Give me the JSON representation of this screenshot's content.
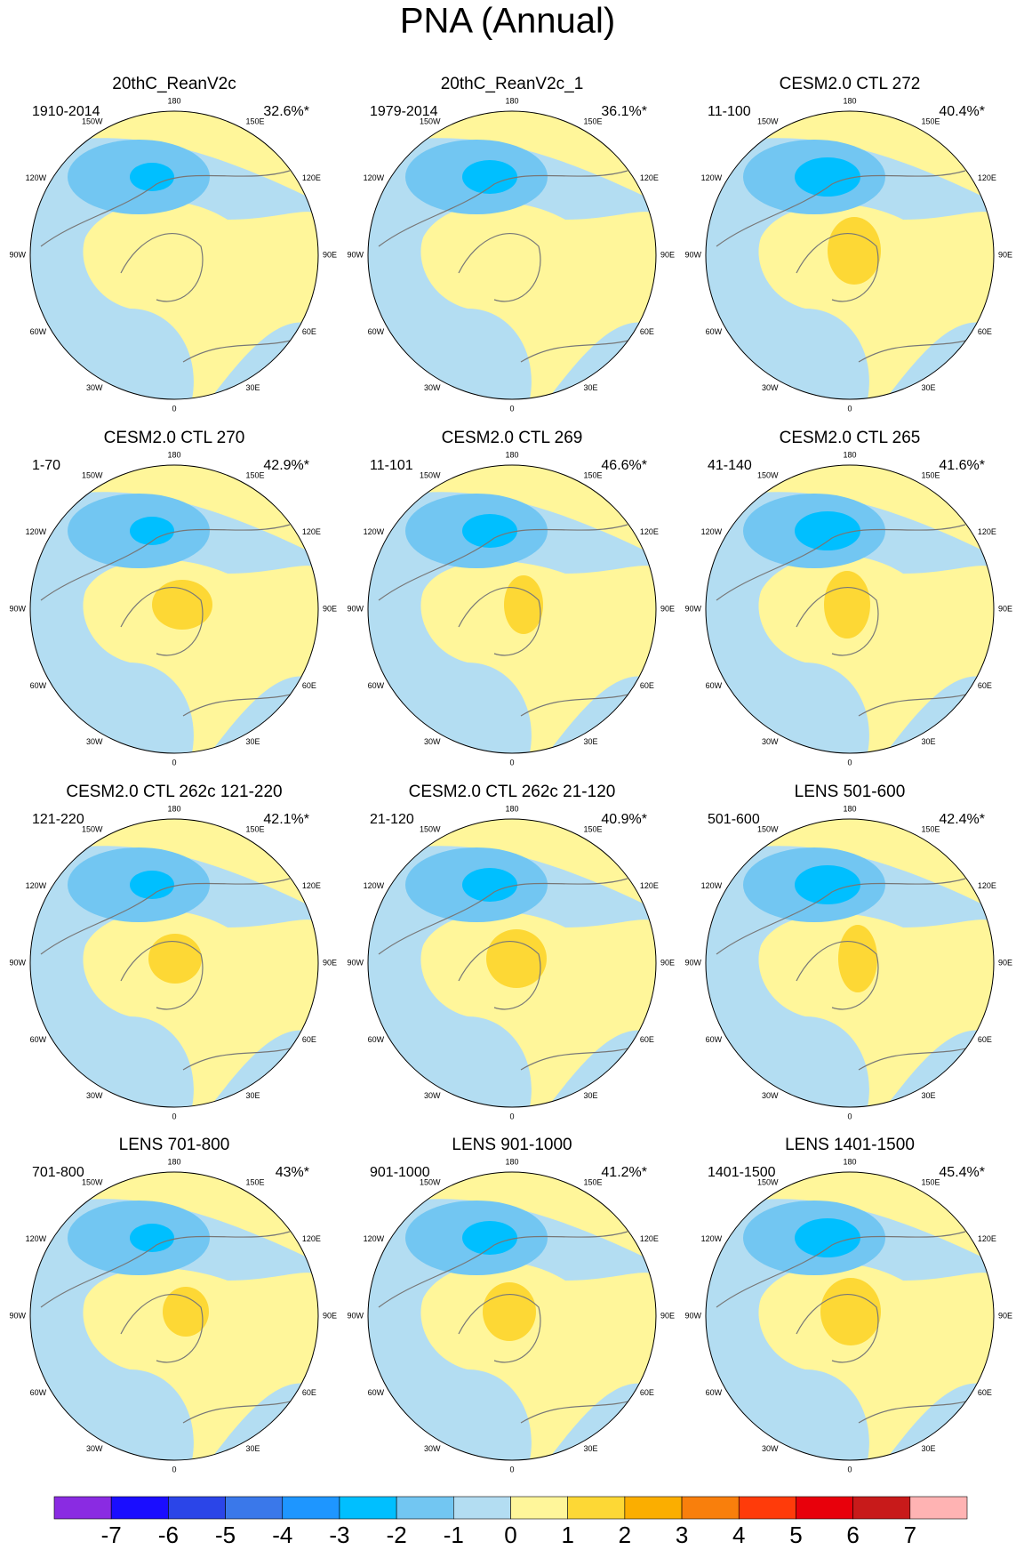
{
  "title": "PNA (Annual)",
  "longitude_labels": [
    "180",
    "150E",
    "120E",
    "90E",
    "60E",
    "30E",
    "0",
    "30W",
    "60W",
    "90W",
    "120W",
    "150W"
  ],
  "panels": [
    {
      "title": "20thC_ReanV2c",
      "period": "1910-2014",
      "variance": "32.6%*"
    },
    {
      "title": "20thC_ReanV2c_1",
      "period": "1979-2014",
      "variance": "36.1%*"
    },
    {
      "title": "CESM2.0 CTL 272",
      "period": "11-100",
      "variance": "40.4%*"
    },
    {
      "title": "CESM2.0 CTL 270",
      "period": "1-70",
      "variance": "42.9%*"
    },
    {
      "title": "CESM2.0 CTL 269",
      "period": "11-101",
      "variance": "46.6%*"
    },
    {
      "title": "CESM2.0 CTL 265",
      "period": "41-140",
      "variance": "41.6%*"
    },
    {
      "title": "CESM2.0 CTL 262c 121-220",
      "period": "121-220",
      "variance": "42.1%*"
    },
    {
      "title": "CESM2.0 CTL 262c 21-120",
      "period": "21-120",
      "variance": "40.9%*"
    },
    {
      "title": "LENS 501-600",
      "period": "501-600",
      "variance": "42.4%*"
    },
    {
      "title": "LENS 701-800",
      "period": "701-800",
      "variance": "43%*"
    },
    {
      "title": "LENS 901-1000",
      "period": "901-1000",
      "variance": "41.2%*"
    },
    {
      "title": "LENS 1401-1500",
      "period": "1401-1500",
      "variance": "45.4%*"
    }
  ],
  "colorbar": {
    "colors": [
      "#8a2be2",
      "#1a0dff",
      "#2b45e8",
      "#3a78ea",
      "#1e96ff",
      "#00bfff",
      "#72c6f2",
      "#b3ddf2",
      "#fff69a",
      "#fdd835",
      "#fbae00",
      "#f97f0c",
      "#ff3b0a",
      "#e8000b",
      "#c81a1a",
      "#ffb3b3"
    ],
    "levels": [
      -7,
      -6,
      -5,
      -4,
      -3,
      -2,
      -1,
      0,
      1,
      2,
      3,
      4,
      5,
      6,
      7
    ]
  }
}
